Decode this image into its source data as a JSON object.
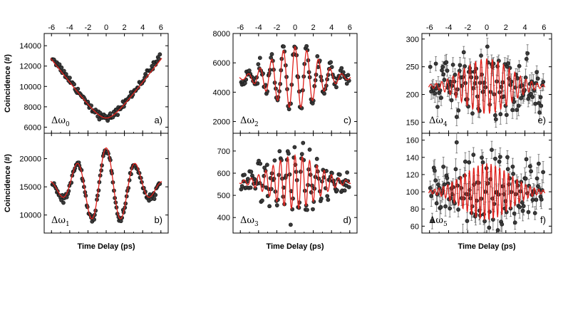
{
  "figure": {
    "xlabel": "Time Delay (ps)",
    "ylabel": "Coincidence (#)"
  },
  "colors": {
    "fit": "#e0201b",
    "points": "#3a3a3a",
    "errorbar": "#6a6a6a",
    "axis": "#000000"
  },
  "chart_data": [
    {
      "id": "a",
      "type": "scatter",
      "panel_label": "a)",
      "omega_sub": "0",
      "xlim": [
        -6.8,
        6.8
      ],
      "ylim": [
        5400,
        15200
      ],
      "xticks": [
        -6,
        -4,
        -2,
        0,
        2,
        4,
        6
      ],
      "yticks": [
        6000,
        8000,
        10000,
        12000,
        14000
      ],
      "model": {
        "kind": "vshape",
        "base": 6900,
        "slope": 1180,
        "curv": 0.85
      },
      "fit_model": {
        "kind": "vshape",
        "base": 6900,
        "slope": 1130,
        "curv": 0.9
      },
      "noise": 180,
      "n_points": 120,
      "errorbars": false
    },
    {
      "id": "b",
      "type": "scatter",
      "panel_label": "b)",
      "omega_sub": "1",
      "xlim": [
        -6.8,
        6.8
      ],
      "ylim": [
        6800,
        24500
      ],
      "xticks": [
        -6,
        -4,
        -2,
        0,
        2,
        4,
        6
      ],
      "yticks": [
        10000,
        15000,
        20000
      ],
      "model": {
        "kind": "osc",
        "base": 15000,
        "amp": 6600,
        "freq": 0.31,
        "sigma": 3.2,
        "phase": 3.14159
      },
      "fit_model": {
        "kind": "osc",
        "base": 15200,
        "amp": 6700,
        "freq": 0.31,
        "sigma": 3.1,
        "phase": 3.14159
      },
      "noise": 300,
      "n_points": 120,
      "errorbars": false
    },
    {
      "id": "c",
      "type": "scatter",
      "panel_label": "c)",
      "omega_sub": "2",
      "xlim": [
        -6.8,
        6.8
      ],
      "ylim": [
        1200,
        8000
      ],
      "xticks": [
        -6,
        -4,
        -2,
        0,
        2,
        4,
        6
      ],
      "yticks": [
        2000,
        4000,
        6000,
        8000
      ],
      "model": {
        "kind": "osc",
        "base": 5000,
        "amp": 2200,
        "freq": 0.78,
        "sigma": 2.6,
        "phase": 3.14159
      },
      "fit_model": {
        "kind": "osc",
        "base": 5000,
        "amp": 2100,
        "freq": 0.78,
        "sigma": 2.5,
        "phase": 3.14159
      },
      "noise": 220,
      "n_points": 120,
      "errorbars": false
    },
    {
      "id": "d",
      "type": "scatter",
      "panel_label": "d)",
      "omega_sub": "3",
      "xlim": [
        -6.8,
        6.8
      ],
      "ylim": [
        330,
        780
      ],
      "xticks": [
        -6,
        -4,
        -2,
        0,
        2,
        4,
        6
      ],
      "yticks": [
        400,
        500,
        600,
        700
      ],
      "model": {
        "kind": "osc",
        "base": 560,
        "amp": 130,
        "freq": 1.25,
        "sigma": 2.6,
        "phase": 3.14159
      },
      "fit_model": {
        "kind": "osc",
        "base": 560,
        "amp": 120,
        "freq": 1.25,
        "sigma": 2.5,
        "phase": 3.14159
      },
      "noise": 35,
      "n_points": 130,
      "errorbars": false
    },
    {
      "id": "e",
      "type": "scatter",
      "panel_label": "e)",
      "omega_sub": "4",
      "xlim": [
        -6.8,
        6.8
      ],
      "ylim": [
        130,
        310
      ],
      "xticks": [
        -6,
        -4,
        -2,
        0,
        2,
        4,
        6
      ],
      "yticks": [
        150,
        200,
        250,
        300
      ],
      "model": {
        "kind": "osc",
        "base": 215,
        "amp": 55,
        "freq": 1.7,
        "sigma": 2.6,
        "phase": 3.14159
      },
      "fit_model": {
        "kind": "osc",
        "base": 215,
        "amp": 50,
        "freq": 1.7,
        "sigma": 2.5,
        "phase": 3.14159
      },
      "noise": 25,
      "n_points": 130,
      "errorbars": true,
      "errsize": 14
    },
    {
      "id": "f",
      "type": "scatter",
      "panel_label": "f)",
      "omega_sub": "5",
      "xlim": [
        -6.8,
        6.8
      ],
      "ylim": [
        52,
        168
      ],
      "xticks": [
        -6,
        -4,
        -2,
        0,
        2,
        4,
        6
      ],
      "yticks": [
        60,
        80,
        100,
        120,
        140,
        160
      ],
      "model": {
        "kind": "osc",
        "base": 100,
        "amp": 35,
        "freq": 2.2,
        "sigma": 2.6,
        "phase": 3.14159
      },
      "fit_model": {
        "kind": "osc",
        "base": 100,
        "amp": 33,
        "freq": 2.2,
        "sigma": 2.5,
        "phase": 3.14159
      },
      "noise": 15,
      "n_points": 130,
      "errorbars": true,
      "errsize": 10
    }
  ]
}
